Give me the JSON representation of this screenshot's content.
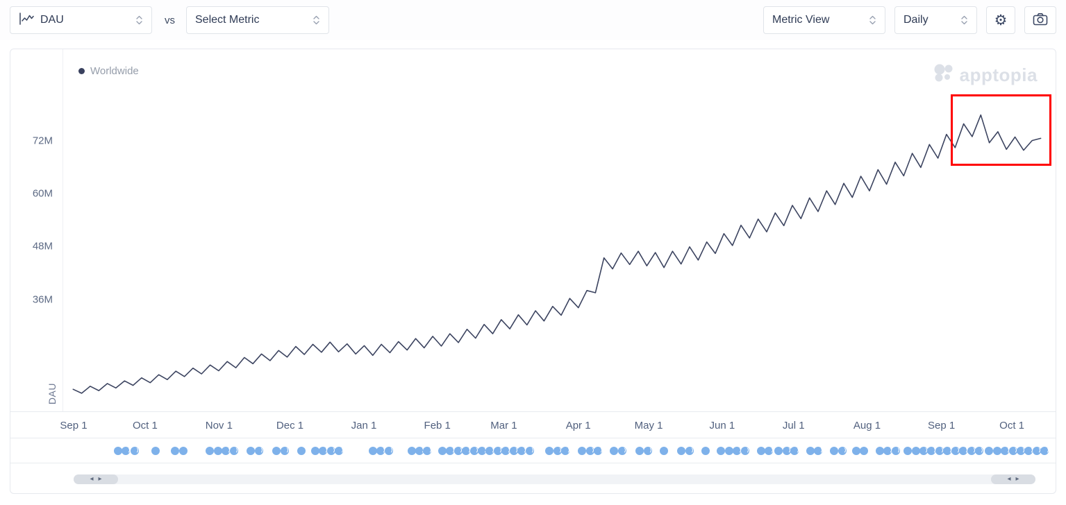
{
  "toolbar": {
    "metric_a": {
      "label": "DAU"
    },
    "vs_label": "vs",
    "metric_b": {
      "label": "Select Metric"
    },
    "view_select": {
      "label": "Metric View"
    },
    "interval_select": {
      "label": "Daily"
    }
  },
  "icons": {
    "gear": "⚙"
  },
  "scrollbar": {
    "arrow_left": "◂",
    "arrow_right": "▸"
  },
  "legend": {
    "series": "Worldwide",
    "color": "#39415e"
  },
  "watermark": "apptopia",
  "chart_data": {
    "type": "line",
    "title": "",
    "xlabel": "",
    "ylabel": "DAU",
    "grid": false,
    "legend_position": "top-left",
    "x_range": "Sep 1 to Oct 1 of following year, daily values",
    "ylim": [
      10.6,
      92.7
    ],
    "x_start_pct": 1.0,
    "x_end_pct": 98.5,
    "yticks": [
      {
        "value": 72,
        "label": "72M"
      },
      {
        "value": 60,
        "label": "60M"
      },
      {
        "value": 48,
        "label": "48M"
      },
      {
        "value": 36,
        "label": "36M"
      }
    ],
    "xticks": [
      {
        "label": "Sep 1",
        "pct": 1.05
      },
      {
        "label": "Oct 1",
        "pct": 8.25
      },
      {
        "label": "Nov 1",
        "pct": 15.7
      },
      {
        "label": "Dec 1",
        "pct": 22.85
      },
      {
        "label": "Jan 1",
        "pct": 30.3
      },
      {
        "label": "Feb 1",
        "pct": 37.7
      },
      {
        "label": "Mar 1",
        "pct": 44.4
      },
      {
        "label": "Apr 1",
        "pct": 51.9
      },
      {
        "label": "May 1",
        "pct": 59.0
      },
      {
        "label": "Jun 1",
        "pct": 66.4
      },
      {
        "label": "Jul 1",
        "pct": 73.6
      },
      {
        "label": "Aug 1",
        "pct": 81.0
      },
      {
        "label": "Sep 1",
        "pct": 88.5
      },
      {
        "label": "Oct 1",
        "pct": 95.6
      }
    ],
    "series": [
      {
        "name": "Worldwide",
        "color": "#3c4460",
        "unit": "M DAU",
        "values": [
          15.6,
          14.7,
          16.3,
          15.3,
          16.9,
          15.9,
          17.5,
          16.5,
          18.2,
          17.1,
          18.9,
          17.8,
          19.7,
          18.5,
          20.4,
          19.1,
          21.1,
          19.8,
          21.9,
          20.5,
          22.8,
          21.4,
          23.6,
          22.1,
          24.4,
          22.9,
          25.3,
          23.5,
          25.8,
          24.0,
          26.3,
          24.1,
          25.9,
          23.6,
          25.5,
          23.3,
          25.8,
          23.9,
          26.4,
          24.5,
          27.1,
          25.0,
          27.6,
          25.4,
          28.2,
          26.2,
          29.2,
          27.2,
          30.3,
          28.2,
          31.4,
          29.3,
          32.5,
          30.2,
          33.4,
          31.1,
          34.4,
          32.4,
          36.2,
          34.1,
          38.0,
          37.5,
          45.4,
          42.9,
          46.5,
          43.9,
          46.9,
          43.6,
          46.6,
          43.2,
          46.9,
          44.0,
          47.9,
          44.9,
          49.0,
          46.4,
          50.9,
          48.2,
          52.8,
          49.9,
          54.2,
          51.3,
          55.6,
          52.7,
          57.3,
          54.3,
          59.0,
          55.9,
          60.6,
          57.5,
          62.3,
          59.1,
          63.9,
          60.6,
          65.4,
          62.1,
          67.1,
          64.0,
          69.1,
          65.9,
          71.1,
          68.0,
          73.4,
          70.4,
          75.8,
          72.9,
          77.8,
          71.5,
          74.0,
          70.0,
          72.8,
          69.8,
          72.0,
          72.5
        ]
      }
    ],
    "annotation": {
      "type": "box",
      "color": "#ff0000",
      "x1_pct": 89.4,
      "x2_pct": 99.6,
      "y_top": 82.5,
      "y_bottom": 66.3,
      "meaning": "red highlight around recent plateau/decline"
    }
  },
  "timeline_markers": [
    [
      5.5,
      "f"
    ],
    [
      6.3,
      "p"
    ],
    [
      7.2,
      "d"
    ],
    [
      9.3,
      "f"
    ],
    [
      11.3,
      "f"
    ],
    [
      12.1,
      "f"
    ],
    [
      14.8,
      "f"
    ],
    [
      15.6,
      "f"
    ],
    [
      16.4,
      "p"
    ],
    [
      17.2,
      "d"
    ],
    [
      18.9,
      "f"
    ],
    [
      19.7,
      "p"
    ],
    [
      21.5,
      "f"
    ],
    [
      22.3,
      "p"
    ],
    [
      24.0,
      "f"
    ],
    [
      25.4,
      "f"
    ],
    [
      26.2,
      "p"
    ],
    [
      27.0,
      "d"
    ],
    [
      27.8,
      "d"
    ],
    [
      31.2,
      "f"
    ],
    [
      32.0,
      "p"
    ],
    [
      32.8,
      "d"
    ],
    [
      35.1,
      "f"
    ],
    [
      35.9,
      "p"
    ],
    [
      36.7,
      "d"
    ],
    [
      38.2,
      "f"
    ],
    [
      39.0,
      "p"
    ],
    [
      39.8,
      "d"
    ],
    [
      40.6,
      "p"
    ],
    [
      41.4,
      "d"
    ],
    [
      42.2,
      "d"
    ],
    [
      43.0,
      "p"
    ],
    [
      43.8,
      "d"
    ],
    [
      44.6,
      "d"
    ],
    [
      45.4,
      "p"
    ],
    [
      46.2,
      "d"
    ],
    [
      47.0,
      "d"
    ],
    [
      49.0,
      "f"
    ],
    [
      49.8,
      "p"
    ],
    [
      50.6,
      "d"
    ],
    [
      52.3,
      "f"
    ],
    [
      53.1,
      "p"
    ],
    [
      53.9,
      "d"
    ],
    [
      55.5,
      "f"
    ],
    [
      56.3,
      "p"
    ],
    [
      58.1,
      "f"
    ],
    [
      58.9,
      "p"
    ],
    [
      60.5,
      "f"
    ],
    [
      62.3,
      "f"
    ],
    [
      63.1,
      "p"
    ],
    [
      64.7,
      "f"
    ],
    [
      66.3,
      "f"
    ],
    [
      67.1,
      "f"
    ],
    [
      67.9,
      "p"
    ],
    [
      68.7,
      "d"
    ],
    [
      70.3,
      "f"
    ],
    [
      71.1,
      "p"
    ],
    [
      72.1,
      "f"
    ],
    [
      72.9,
      "p"
    ],
    [
      73.7,
      "d"
    ],
    [
      75.3,
      "f"
    ],
    [
      76.1,
      "p"
    ],
    [
      77.7,
      "f"
    ],
    [
      78.5,
      "p"
    ],
    [
      79.9,
      "f"
    ],
    [
      80.7,
      "f"
    ],
    [
      82.3,
      "f"
    ],
    [
      83.1,
      "p"
    ],
    [
      83.9,
      "d"
    ],
    [
      85.1,
      "f"
    ],
    [
      85.9,
      "f"
    ],
    [
      86.7,
      "p"
    ],
    [
      87.5,
      "d"
    ],
    [
      88.3,
      "d"
    ],
    [
      89.1,
      "p"
    ],
    [
      89.9,
      "d"
    ],
    [
      90.7,
      "d"
    ],
    [
      91.5,
      "p"
    ],
    [
      92.3,
      "d"
    ],
    [
      93.3,
      "f"
    ],
    [
      94.1,
      "f"
    ],
    [
      94.9,
      "p"
    ],
    [
      95.7,
      "d"
    ],
    [
      96.5,
      "d"
    ],
    [
      97.3,
      "p"
    ],
    [
      98.1,
      "d"
    ],
    [
      98.9,
      "d"
    ]
  ]
}
